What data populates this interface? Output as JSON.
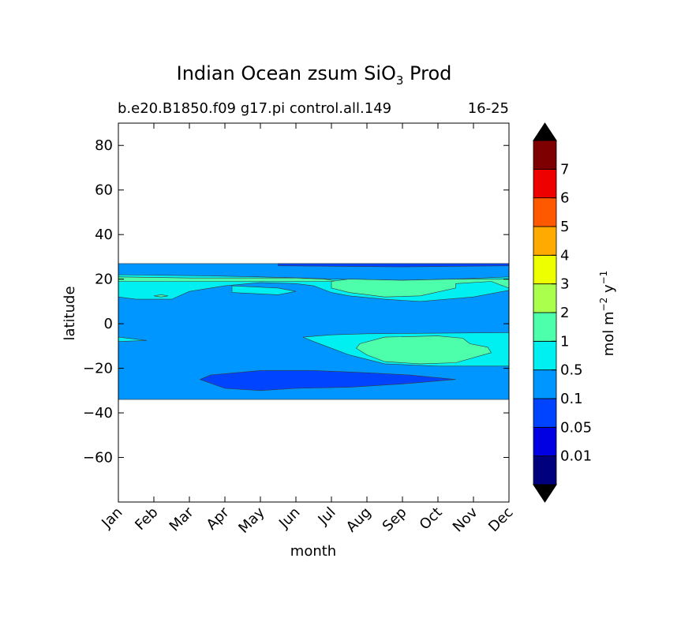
{
  "chart_data": {
    "type": "contourf",
    "title": {
      "prefix": "Indian Ocean zsum SiO",
      "subscript": "3",
      "suffix": " Prod"
    },
    "subtitle_left": "b.e20.B1850.f09 g17.pi control.all.149",
    "subtitle_right": "16-25",
    "xlabel": "month",
    "ylabel": "latitude",
    "x_ticks": [
      "Jan",
      "Feb",
      "Mar",
      "Apr",
      "May",
      "Jun",
      "Jul",
      "Aug",
      "Sep",
      "Oct",
      "Nov",
      "Dec"
    ],
    "xlim": [
      1,
      12
    ],
    "ylim": [
      -80,
      90
    ],
    "y_ticks": [
      80,
      60,
      40,
      20,
      0,
      -20,
      -40,
      -60
    ],
    "y_tick_labels": [
      "80",
      "60",
      "40",
      "20",
      "0",
      "−20",
      "−40",
      "−60"
    ],
    "data_lat_range": [
      -34,
      27
    ],
    "colorbar": {
      "label_prefix": "mol m",
      "label_exp1": "−2",
      "label_mid": " y",
      "label_exp2": "−1",
      "levels": [
        0,
        0.01,
        0.05,
        0.1,
        0.5,
        1,
        2,
        3,
        4,
        5,
        6,
        7,
        8
      ],
      "tick_labels": [
        "0.01",
        "0.05",
        "0.1",
        "0.5",
        "1",
        "2",
        "3",
        "4",
        "5",
        "6",
        "7"
      ],
      "colors": [
        "#00007f",
        "#0000e2",
        "#0044ff",
        "#0096ff",
        "#00f0f2",
        "#4dffaa",
        "#aaff4d",
        "#eeff00",
        "#ffaa00",
        "#ff5900",
        "#ee0000",
        "#7f0000"
      ],
      "extend_colors": [
        "#000000",
        "#000000"
      ]
    },
    "regions": [
      {
        "name": "band-0.1-0.5",
        "level_index": 3,
        "points": [
          [
            1,
            27
          ],
          [
            12,
            27
          ],
          [
            12,
            -34
          ],
          [
            1,
            -34
          ]
        ]
      },
      {
        "name": "zone-0.05-0.1-north",
        "level_index": 2,
        "points": [
          [
            5.5,
            27
          ],
          [
            12,
            27
          ],
          [
            12,
            26
          ],
          [
            9,
            25.5
          ],
          [
            5.5,
            26
          ]
        ]
      },
      {
        "name": "zone-0.05-0.1-south",
        "level_index": 2,
        "points": [
          [
            3.3,
            -25
          ],
          [
            3.6,
            -23
          ],
          [
            5,
            -21
          ],
          [
            6.5,
            -21
          ],
          [
            8,
            -22
          ],
          [
            9.2,
            -23
          ],
          [
            10.5,
            -25
          ],
          [
            9,
            -27
          ],
          [
            7.5,
            -28.5
          ],
          [
            6,
            -29
          ],
          [
            5,
            -30
          ],
          [
            4,
            -29
          ]
        ]
      },
      {
        "name": "zone-0.5-1-north",
        "level_index": 4,
        "points": [
          [
            1,
            22
          ],
          [
            3.5,
            21.5
          ],
          [
            5,
            21
          ],
          [
            6.2,
            20.5
          ],
          [
            7,
            20
          ],
          [
            9,
            19.5
          ],
          [
            10.5,
            20
          ],
          [
            12,
            21
          ],
          [
            12,
            15
          ],
          [
            11,
            12
          ],
          [
            9.5,
            10
          ],
          [
            8.5,
            11
          ],
          [
            7.5,
            12.5
          ],
          [
            7,
            14
          ],
          [
            6.5,
            17
          ],
          [
            6,
            18
          ],
          [
            5,
            18.5
          ],
          [
            4,
            17
          ],
          [
            3,
            14.5
          ],
          [
            2.5,
            11
          ],
          [
            1.5,
            11
          ],
          [
            1,
            12
          ]
        ]
      },
      {
        "name": "zone-0.5-1-north-pocket",
        "level_index": 4,
        "points": [
          [
            4.2,
            17
          ],
          [
            5.5,
            16
          ],
          [
            6,
            14.5
          ],
          [
            5.5,
            13
          ],
          [
            4.2,
            14
          ]
        ]
      },
      {
        "name": "zone-0.5-1-south",
        "level_index": 4,
        "points": [
          [
            6.2,
            -6
          ],
          [
            7,
            -5
          ],
          [
            8,
            -4.5
          ],
          [
            12,
            -4
          ],
          [
            12,
            -19
          ],
          [
            10,
            -19
          ],
          [
            8.5,
            -18
          ],
          [
            7.5,
            -14
          ],
          [
            7,
            -11
          ],
          [
            6.5,
            -8
          ]
        ]
      },
      {
        "name": "zone-0.5-1-west-tongue",
        "level_index": 4,
        "points": [
          [
            1,
            -6
          ],
          [
            1.8,
            -7.5
          ],
          [
            1,
            -8
          ]
        ]
      },
      {
        "name": "zone-1-2-north",
        "level_index": 5,
        "points": [
          [
            1,
            21
          ],
          [
            3,
            20.5
          ],
          [
            5,
            20.5
          ],
          [
            6,
            20.5
          ],
          [
            6.8,
            20
          ],
          [
            7.2,
            19
          ],
          [
            1,
            19
          ]
        ]
      },
      {
        "name": "zone-1-2-mid",
        "level_index": 5,
        "points": [
          [
            7,
            19
          ],
          [
            7.5,
            20
          ],
          [
            9,
            19.5
          ],
          [
            10.5,
            20
          ],
          [
            12,
            20
          ],
          [
            12,
            16
          ],
          [
            11.5,
            19
          ],
          [
            10.5,
            18
          ],
          [
            10.5,
            16
          ],
          [
            9.5,
            12.5
          ],
          [
            8.5,
            12
          ],
          [
            7.5,
            14
          ],
          [
            7,
            16
          ]
        ]
      },
      {
        "name": "zone-1-2-south",
        "level_index": 5,
        "points": [
          [
            7.8,
            -9
          ],
          [
            8.5,
            -6
          ],
          [
            10,
            -5.5
          ],
          [
            10.7,
            -6.5
          ],
          [
            10.9,
            -9
          ],
          [
            11.4,
            -10.5
          ],
          [
            11.5,
            -13
          ],
          [
            10.5,
            -17.5
          ],
          [
            9.5,
            -18
          ],
          [
            8.5,
            -17
          ],
          [
            8,
            -14
          ],
          [
            7.7,
            -11
          ]
        ]
      },
      {
        "name": "zone-1-2-dot",
        "level_index": 5,
        "points": [
          [
            2,
            12.5
          ],
          [
            2.2,
            13
          ],
          [
            2.4,
            12.5
          ],
          [
            2.2,
            12
          ]
        ]
      }
    ]
  }
}
